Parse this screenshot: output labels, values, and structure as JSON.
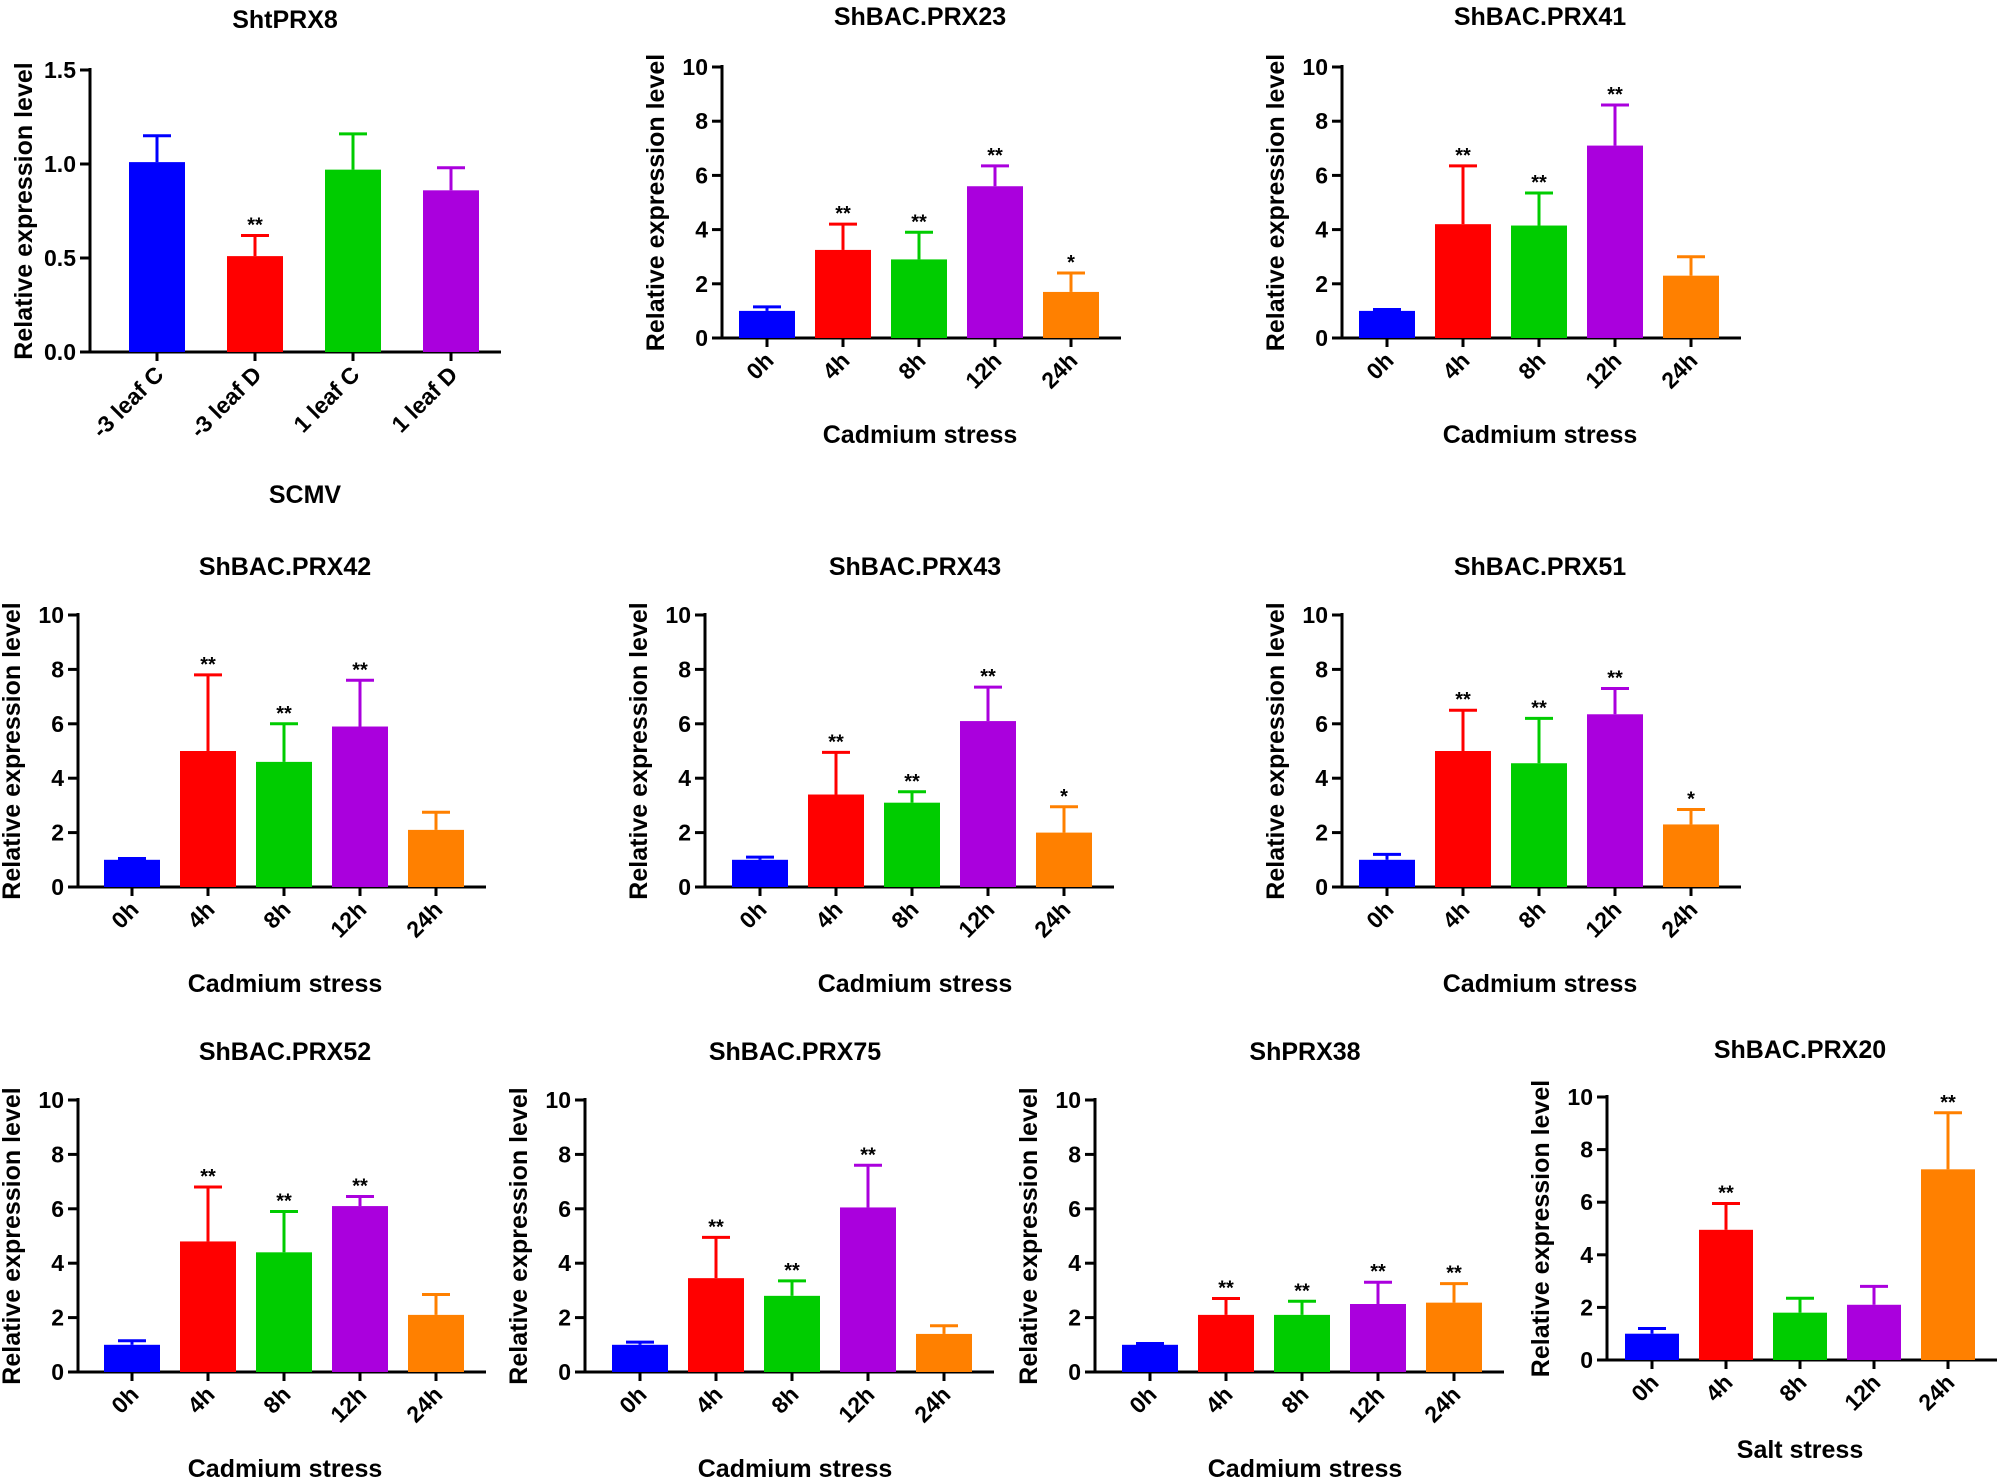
{
  "chart_data": [
    {
      "type": "bar",
      "title": "ShtPRX8",
      "xlabel": "SCMV",
      "ylabel": "Relative expression level",
      "ylim": [
        0,
        1.5
      ],
      "yticks": [
        "0.0",
        "0.5",
        "1.0",
        "1.5"
      ],
      "categories": [
        "-3 leaf C",
        "-3 leaf D",
        "1 leaf C",
        "1 leaf D"
      ],
      "values": [
        1.01,
        0.51,
        0.97,
        0.86
      ],
      "errors": [
        0.14,
        0.11,
        0.19,
        0.12
      ],
      "significance": [
        "",
        "**",
        "",
        ""
      ],
      "colors": [
        "#0000ff",
        "#ff0000",
        "#00cc00",
        "#aa00dd"
      ]
    },
    {
      "type": "bar",
      "title": "ShBAC.PRX23",
      "xlabel": "Cadmium stress",
      "ylabel": "Relative expression level",
      "ylim": [
        0,
        10
      ],
      "yticks": [
        "0",
        "2",
        "4",
        "6",
        "8",
        "10"
      ],
      "categories": [
        "0h",
        "4h",
        "8h",
        "12h",
        "24h"
      ],
      "values": [
        1.0,
        3.25,
        2.9,
        5.6,
        1.7
      ],
      "errors": [
        0.15,
        0.95,
        1.0,
        0.75,
        0.7
      ],
      "significance": [
        "",
        "**",
        "**",
        "**",
        "*"
      ],
      "colors": [
        "#0000ff",
        "#ff0000",
        "#00cc00",
        "#aa00dd",
        "#ff8000"
      ]
    },
    {
      "type": "bar",
      "title": "ShBAC.PRX41",
      "xlabel": "Cadmium stress",
      "ylabel": "Relative expression level",
      "ylim": [
        0,
        10
      ],
      "yticks": [
        "0",
        "2",
        "4",
        "6",
        "8",
        "10"
      ],
      "categories": [
        "0h",
        "4h",
        "8h",
        "12h",
        "24h"
      ],
      "values": [
        1.0,
        4.2,
        4.15,
        7.1,
        2.3
      ],
      "errors": [
        0.05,
        2.15,
        1.2,
        1.5,
        0.7
      ],
      "significance": [
        "",
        "**",
        "**",
        "**",
        ""
      ],
      "colors": [
        "#0000ff",
        "#ff0000",
        "#00cc00",
        "#aa00dd",
        "#ff8000"
      ]
    },
    {
      "type": "bar",
      "title": "ShBAC.PRX42",
      "xlabel": "Cadmium stress",
      "ylabel": "Relative expression level",
      "ylim": [
        0,
        10
      ],
      "yticks": [
        "0",
        "2",
        "4",
        "6",
        "8",
        "10"
      ],
      "categories": [
        "0h",
        "4h",
        "8h",
        "12h",
        "24h"
      ],
      "values": [
        1.0,
        5.0,
        4.6,
        5.9,
        2.1
      ],
      "errors": [
        0.05,
        2.8,
        1.4,
        1.7,
        0.65
      ],
      "significance": [
        "",
        "**",
        "**",
        "**",
        ""
      ],
      "colors": [
        "#0000ff",
        "#ff0000",
        "#00cc00",
        "#aa00dd",
        "#ff8000"
      ]
    },
    {
      "type": "bar",
      "title": "ShBAC.PRX43",
      "xlabel": "Cadmium stress",
      "ylabel": "Relative expression level",
      "ylim": [
        0,
        10
      ],
      "yticks": [
        "0",
        "2",
        "4",
        "6",
        "8",
        "10"
      ],
      "categories": [
        "0h",
        "4h",
        "8h",
        "12h",
        "24h"
      ],
      "values": [
        1.0,
        3.4,
        3.1,
        6.1,
        2.0
      ],
      "errors": [
        0.1,
        1.55,
        0.4,
        1.25,
        0.95
      ],
      "significance": [
        "",
        "**",
        "**",
        "**",
        "*"
      ],
      "colors": [
        "#0000ff",
        "#ff0000",
        "#00cc00",
        "#aa00dd",
        "#ff8000"
      ]
    },
    {
      "type": "bar",
      "title": "ShBAC.PRX51",
      "xlabel": "Cadmium stress",
      "ylabel": "Relative expression level",
      "ylim": [
        0,
        10
      ],
      "yticks": [
        "0",
        "2",
        "4",
        "6",
        "8",
        "10"
      ],
      "categories": [
        "0h",
        "4h",
        "8h",
        "12h",
        "24h"
      ],
      "values": [
        1.0,
        5.0,
        4.55,
        6.35,
        2.3
      ],
      "errors": [
        0.2,
        1.5,
        1.65,
        0.95,
        0.55
      ],
      "significance": [
        "",
        "**",
        "**",
        "**",
        "*"
      ],
      "colors": [
        "#0000ff",
        "#ff0000",
        "#00cc00",
        "#aa00dd",
        "#ff8000"
      ]
    },
    {
      "type": "bar",
      "title": "ShBAC.PRX52",
      "xlabel": "Cadmium stress",
      "ylabel": "Relative expression level",
      "ylim": [
        0,
        10
      ],
      "yticks": [
        "0",
        "2",
        "4",
        "6",
        "8",
        "10"
      ],
      "categories": [
        "0h",
        "4h",
        "8h",
        "12h",
        "24h"
      ],
      "values": [
        1.0,
        4.8,
        4.4,
        6.1,
        2.1
      ],
      "errors": [
        0.15,
        2.0,
        1.5,
        0.35,
        0.75
      ],
      "significance": [
        "",
        "**",
        "**",
        "**",
        ""
      ],
      "colors": [
        "#0000ff",
        "#ff0000",
        "#00cc00",
        "#aa00dd",
        "#ff8000"
      ]
    },
    {
      "type": "bar",
      "title": "ShBAC.PRX75",
      "xlabel": "Cadmium stress",
      "ylabel": "Relative expression level",
      "ylim": [
        0,
        10
      ],
      "yticks": [
        "0",
        "2",
        "4",
        "6",
        "8",
        "10"
      ],
      "categories": [
        "0h",
        "4h",
        "8h",
        "12h",
        "24h"
      ],
      "values": [
        1.0,
        3.45,
        2.8,
        6.05,
        1.4
      ],
      "errors": [
        0.1,
        1.5,
        0.55,
        1.55,
        0.3
      ],
      "significance": [
        "",
        "**",
        "**",
        "**",
        ""
      ],
      "colors": [
        "#0000ff",
        "#ff0000",
        "#00cc00",
        "#aa00dd",
        "#ff8000"
      ]
    },
    {
      "type": "bar",
      "title": "ShPRX38",
      "xlabel": "Cadmium stress",
      "ylabel": "Relative expression level",
      "ylim": [
        0,
        10
      ],
      "yticks": [
        "0",
        "2",
        "4",
        "6",
        "8",
        "10"
      ],
      "categories": [
        "0h",
        "4h",
        "8h",
        "12h",
        "24h"
      ],
      "values": [
        1.0,
        2.1,
        2.1,
        2.5,
        2.55
      ],
      "errors": [
        0.05,
        0.6,
        0.5,
        0.8,
        0.7
      ],
      "significance": [
        "",
        "**",
        "**",
        "**",
        "**"
      ],
      "colors": [
        "#0000ff",
        "#ff0000",
        "#00cc00",
        "#aa00dd",
        "#ff8000"
      ]
    },
    {
      "type": "bar",
      "title": "ShBAC.PRX20",
      "xlabel": "Salt stress",
      "ylabel": "Relative expression level",
      "ylim": [
        0,
        10
      ],
      "yticks": [
        "0",
        "2",
        "4",
        "6",
        "8",
        "10"
      ],
      "categories": [
        "0h",
        "4h",
        "8h",
        "12h",
        "24h"
      ],
      "values": [
        1.0,
        4.95,
        1.8,
        2.1,
        7.25
      ],
      "errors": [
        0.2,
        1.0,
        0.55,
        0.7,
        2.15
      ],
      "significance": [
        "",
        "**",
        "",
        "",
        "**"
      ],
      "colors": [
        "#0000ff",
        "#ff0000",
        "#00cc00",
        "#aa00dd",
        "#ff8000"
      ]
    }
  ]
}
